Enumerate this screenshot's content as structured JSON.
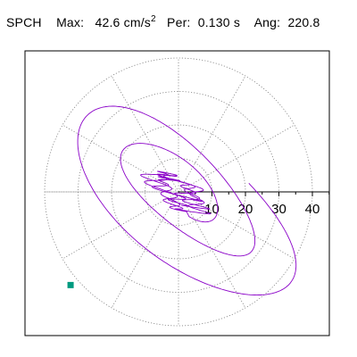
{
  "header": {
    "station": "SPCH",
    "max_label": "Max:",
    "max_value": "42.6",
    "max_unit": "cm/s",
    "max_unit_exp": "2",
    "per_label": "Per:",
    "per_value": "0.130 s",
    "ang_label": "Ang:",
    "ang_value": "220.8"
  },
  "chart_data": {
    "type": "polar-orbit",
    "radial_ticks": [
      "10",
      "20",
      "30",
      "40"
    ],
    "radial_max": 45,
    "angle_lines_deg": [
      0,
      30,
      60,
      90,
      120,
      150,
      180,
      210,
      240,
      270,
      300,
      330
    ],
    "peak_angle_deg": 220.8,
    "peak_amplitude": 42.6,
    "grid": "dotted",
    "colors": {
      "trace": "#8a00c8",
      "end_marker": "#009a80",
      "grid": "#808080",
      "axis": "#000000"
    }
  }
}
